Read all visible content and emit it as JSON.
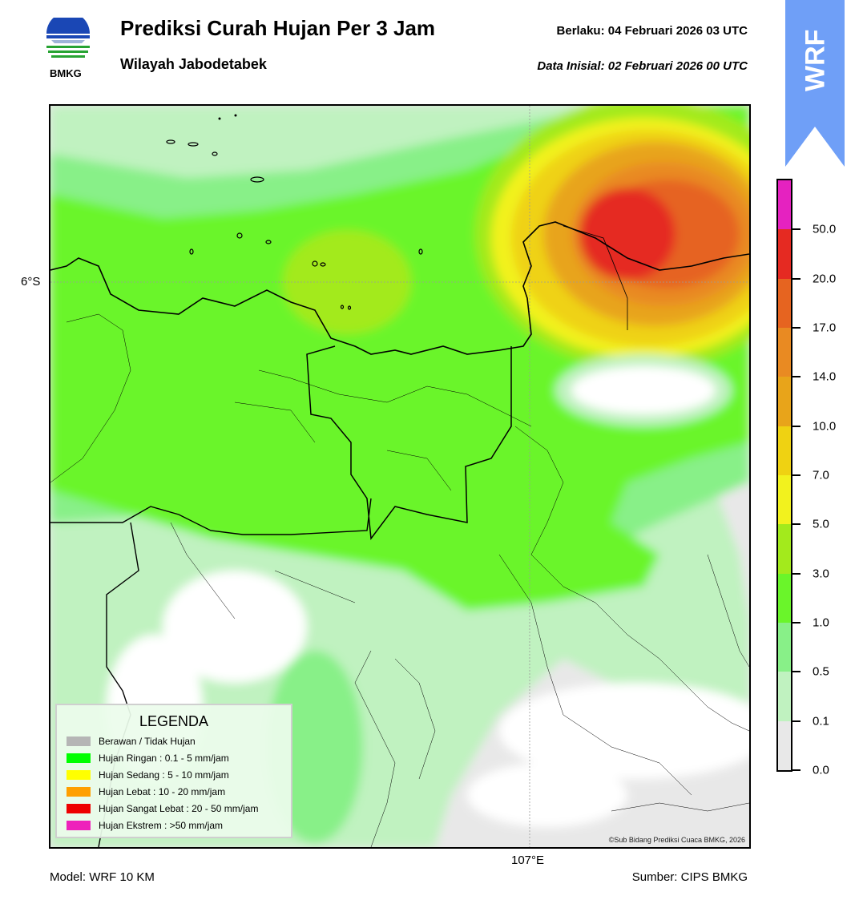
{
  "header": {
    "title": "Prediksi Curah Hujan Per 3 Jam",
    "subtitle": "Wilayah Jabodetabek",
    "valid_label": "Berlaku:  04 Februari 2026 03 UTC",
    "init_label": "Data Inisial:  02 Februari 2026 00 UTC",
    "logo_text": "BMKG"
  },
  "badge": {
    "text": "WRF",
    "color": "#6f9ff7"
  },
  "map": {
    "lat_label": "6°S",
    "lon_label": "107°E",
    "copyright": "©Sub Bidang Prediksi Cuaca BMKG, 2026"
  },
  "legend": {
    "title": "LEGENDA",
    "items": [
      {
        "label": "Berawan / Tidak Hujan",
        "color": "#b5b5b5"
      },
      {
        "label": "Hujan Ringan : 0.1 - 5 mm/jam",
        "color": "#00ff00"
      },
      {
        "label": "Hujan Sedang : 5 - 10 mm/jam",
        "color": "#ffff00"
      },
      {
        "label": "Hujan Lebat : 10 - 20 mm/jam",
        "color": "#ff9f00"
      },
      {
        "label": "Hujan Sangat Lebat : 20 - 50 mm/jam",
        "color": "#ee0000"
      },
      {
        "label": "Hujan Ekstrem : >50 mm/jam",
        "color": "#ee22bb"
      }
    ]
  },
  "colorbar": {
    "labels": [
      "0.0",
      "0.1",
      "0.5",
      "1.0",
      "3.0",
      "5.0",
      "7.0",
      "10.0",
      "14.0",
      "17.0",
      "20.0",
      "50.0"
    ],
    "colors": [
      "#e8e8e8",
      "#c0f2c0",
      "#88f088",
      "#6af52a",
      "#a3ea1c",
      "#f2f21e",
      "#efd212",
      "#e8a41a",
      "#e98a22",
      "#e66420",
      "#e52a22",
      "#e522c0"
    ]
  },
  "footer": {
    "model": "Model: WRF 10 KM",
    "source": "Sumber: CIPS BMKG"
  }
}
